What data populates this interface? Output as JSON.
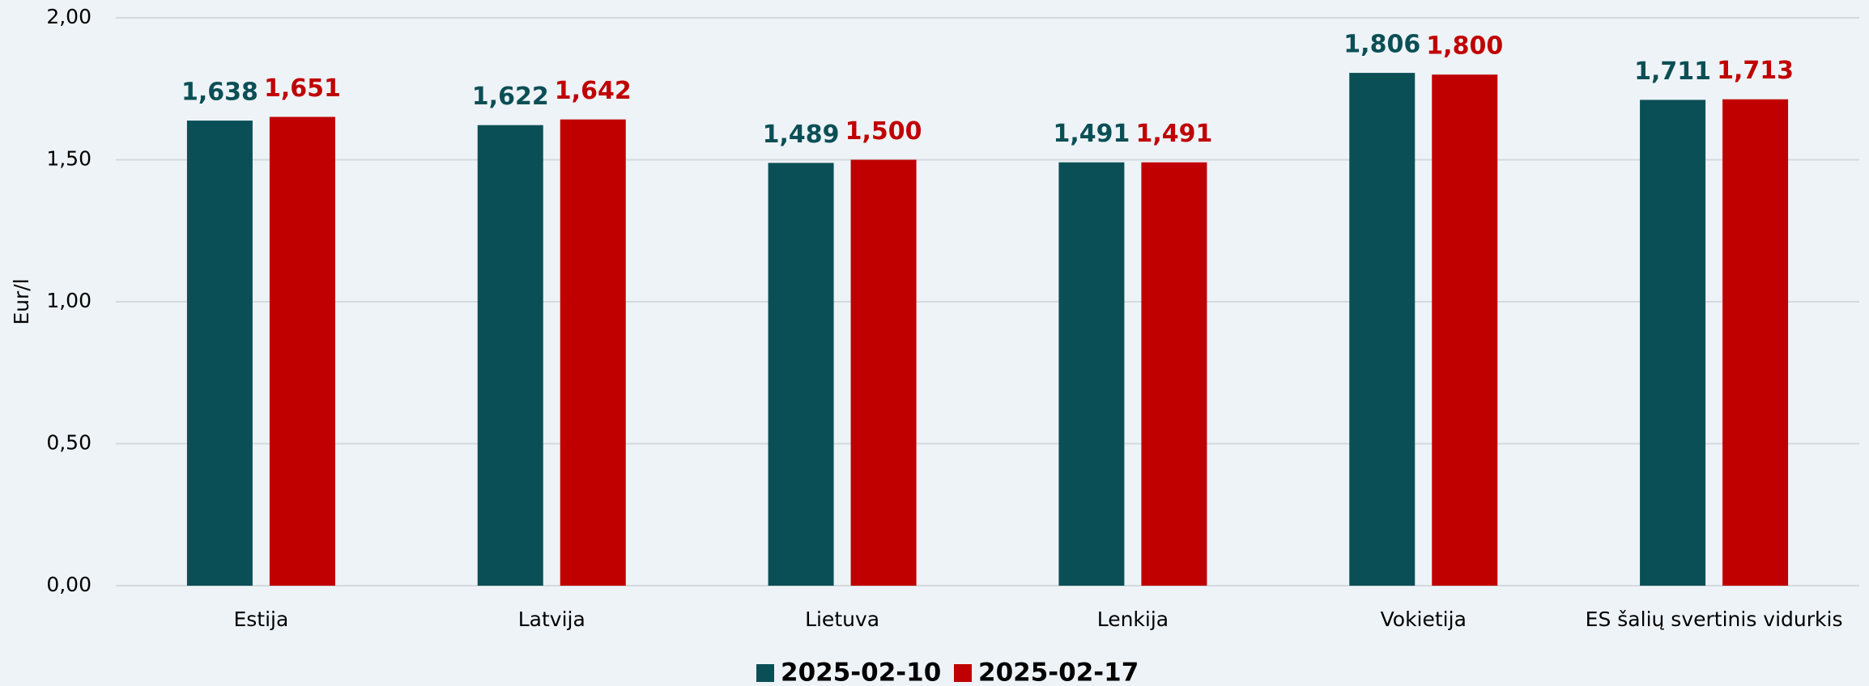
{
  "chart_data": {
    "type": "bar",
    "y_label": "Eur/l",
    "categories": [
      "Estija",
      "Latvija",
      "Lietuva",
      "Lenkija",
      "Vokietija",
      "ES šalių svertinis vidurkis"
    ],
    "series": [
      {
        "name": "2025-02-10",
        "color": "#0b4f56",
        "values": [
          1.638,
          1.622,
          1.489,
          1.491,
          1.806,
          1.711
        ],
        "value_labels": [
          "1,638",
          "1,622",
          "1,489",
          "1,491",
          "1,806",
          "1,711"
        ]
      },
      {
        "name": "2025-02-17",
        "color": "#c00000",
        "values": [
          1.651,
          1.642,
          1.5,
          1.491,
          1.8,
          1.713
        ],
        "value_labels": [
          "1,651",
          "1,642",
          "1,500",
          "1,491",
          "1,800",
          "1,713"
        ]
      }
    ],
    "ylim": [
      0,
      2
    ],
    "yticks": [
      {
        "value": 0,
        "label": "0,00"
      },
      {
        "value": 0.5,
        "label": "0,50"
      },
      {
        "value": 1,
        "label": "1,00"
      },
      {
        "value": 1.5,
        "label": "1,50"
      },
      {
        "value": 2,
        "label": "2,00"
      }
    ],
    "grid": true,
    "legend": "bottom"
  }
}
